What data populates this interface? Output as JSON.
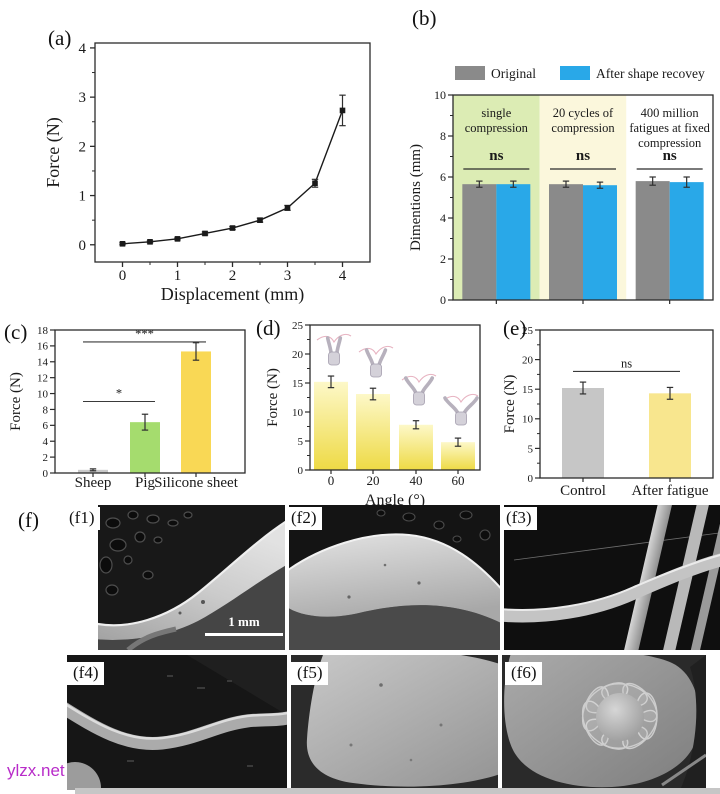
{
  "watermark": {
    "text": "ylzx.net",
    "color": "#b82cc9"
  },
  "panels": {
    "a": {
      "label": "(a)"
    },
    "b": {
      "label": "(b)"
    },
    "c": {
      "label": "(c)"
    },
    "d": {
      "label": "(d)"
    },
    "e": {
      "label": "(e)"
    },
    "f": {
      "label": "(f)",
      "images": [
        {
          "id": "f1",
          "label": "(f1)",
          "scale_bar": "1 mm"
        },
        {
          "id": "f2",
          "label": "(f2)"
        },
        {
          "id": "f3",
          "label": "(f3)"
        },
        {
          "id": "f4",
          "label": "(f4)"
        },
        {
          "id": "f5",
          "label": "(f5)"
        },
        {
          "id": "f6",
          "label": "(f6)"
        }
      ]
    }
  },
  "chart_data": [
    {
      "id": "a",
      "type": "line",
      "xlabel": "Displacement (mm)",
      "ylabel": "Force (N)",
      "x": [
        0,
        0.5,
        1,
        1.5,
        2,
        2.5,
        3,
        3.5,
        4
      ],
      "y": [
        0.02,
        0.06,
        0.12,
        0.23,
        0.34,
        0.5,
        0.75,
        1.25,
        2.73
      ],
      "yerr": [
        0.02,
        0.02,
        0.02,
        0.03,
        0.03,
        0.04,
        0.05,
        0.08,
        0.31
      ],
      "xlim": [
        -0.5,
        4.5
      ],
      "ylim": [
        -0.35,
        4.1
      ],
      "xticks": [
        0,
        1,
        2,
        3,
        4
      ],
      "xminor": [
        0.5,
        1.5,
        2.5,
        3.5
      ],
      "yticks": [
        0,
        1,
        2,
        3,
        4
      ],
      "yminor": [
        0.5,
        1.5,
        2.5,
        3.5
      ],
      "color": "#1a1a1a",
      "marker": "square"
    },
    {
      "id": "b",
      "type": "grouped_bar",
      "ylabel": "Dimentions (mm)",
      "ylim": [
        0,
        10
      ],
      "yticks": [
        0,
        2,
        4,
        6,
        8,
        10
      ],
      "yminor": [
        1,
        3,
        5,
        7,
        9
      ],
      "legend": [
        "Original",
        "After shape recovey"
      ],
      "series": [
        {
          "name": "Original",
          "color": "#8a8a8a",
          "values": [
            5.65,
            5.65,
            5.8
          ],
          "errors": [
            0.15,
            0.15,
            0.2
          ]
        },
        {
          "name": "After shape recovey",
          "color": "#29a8e8",
          "values": [
            5.65,
            5.6,
            5.75
          ],
          "errors": [
            0.15,
            0.15,
            0.25
          ]
        }
      ],
      "groups": [
        {
          "title_lines": [
            "single",
            "compression"
          ],
          "bg": "#dcecb4",
          "sig": "ns"
        },
        {
          "title_lines": [
            "20 cycles of",
            "compression"
          ],
          "bg": "#fbf7dc",
          "sig": "ns"
        },
        {
          "title_lines": [
            "400 million",
            "fatigues at fixed",
            "compression"
          ],
          "bg": "#ffffff",
          "sig": "ns"
        }
      ]
    },
    {
      "id": "c",
      "type": "bar",
      "ylabel": "Force (N)",
      "ylim": [
        0,
        18
      ],
      "yticks": [
        0,
        2,
        4,
        6,
        8,
        10,
        12,
        14,
        16,
        18
      ],
      "categories": [
        "Sheep",
        "Pig",
        "Silicone sheet"
      ],
      "values": [
        0.4,
        6.4,
        15.3
      ],
      "errors": [
        0.12,
        1.0,
        1.1
      ],
      "colors": [
        "#c9c9c9",
        "#a5dc6e",
        "#f9d855"
      ],
      "significance": [
        {
          "label": "*",
          "x1": 0,
          "x2": 1,
          "y": 9
        },
        {
          "label": "***",
          "x1": 0,
          "x2": 2,
          "y": 16.5
        }
      ]
    },
    {
      "id": "d",
      "type": "bar",
      "xlabel": "Angle (°)",
      "ylabel": "Force (N)",
      "ylim": [
        0,
        25
      ],
      "yticks": [
        0,
        5,
        10,
        15,
        20,
        25
      ],
      "yminor": [
        2.5,
        7.5,
        12.5,
        17.5,
        22.5
      ],
      "categories": [
        "0",
        "20",
        "40",
        "60"
      ],
      "values": [
        15.2,
        13.1,
        7.8,
        4.8
      ],
      "errors": [
        1.0,
        1.0,
        0.7,
        0.7
      ],
      "gradient": [
        "#fdf8c8",
        "#eeda45"
      ],
      "icons": "gripper-at-increasing-angle"
    },
    {
      "id": "e",
      "type": "bar",
      "ylabel": "Force (N)",
      "ylim": [
        0,
        25
      ],
      "yticks": [
        0,
        5,
        10,
        15,
        20,
        25
      ],
      "yminor": [
        2.5,
        7.5,
        12.5,
        17.5,
        22.5
      ],
      "categories": [
        "Control",
        "After fatigue"
      ],
      "values": [
        15.2,
        14.3
      ],
      "errors": [
        1.0,
        1.0
      ],
      "colors": [
        "#c6c6c6",
        "#f8e68e"
      ],
      "significance": [
        {
          "label": "ns",
          "x1": 0,
          "x2": 1,
          "y": 18
        }
      ]
    }
  ]
}
